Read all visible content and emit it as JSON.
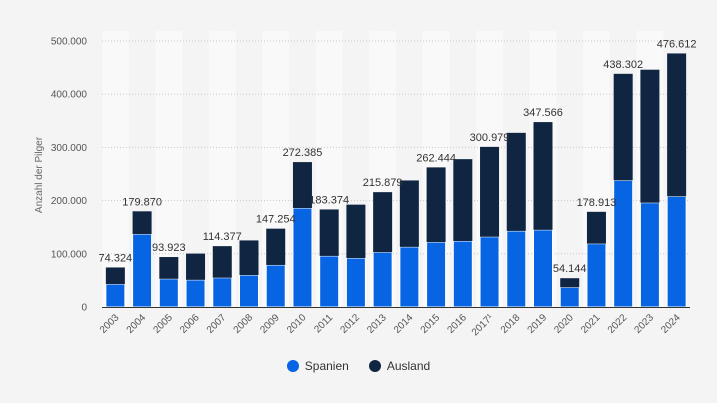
{
  "chart_data": {
    "type": "bar",
    "stacked": true,
    "title": "",
    "xlabel": "",
    "ylabel": "Anzahl der Pilger",
    "ylim": [
      0,
      500000
    ],
    "yticks": [
      0,
      100000,
      200000,
      300000,
      400000,
      500000
    ],
    "ytick_labels": [
      "0",
      "100.000",
      "200.000",
      "300.000",
      "400.000",
      "500.000"
    ],
    "grid": true,
    "legend_position": "bottom-center",
    "categories": [
      "2003",
      "2004",
      "2005",
      "2006",
      "2007",
      "2008",
      "2009",
      "2010",
      "2011",
      "2012",
      "2013",
      "2014",
      "2015",
      "2016",
      "2017¹",
      "2018",
      "2019",
      "2020",
      "2021",
      "2022",
      "2023",
      "2024"
    ],
    "series": [
      {
        "name": "Spanien",
        "color": "#0764e3",
        "values": [
          43000,
          137000,
          53000,
          51000,
          55000,
          60000,
          79000,
          186000,
          96000,
          92000,
          103000,
          113000,
          122000,
          124000,
          132000,
          143000,
          145000,
          37000,
          119000,
          238000,
          196000,
          208000
        ]
      },
      {
        "name": "Ausland",
        "color": "#0f2542",
        "values": [
          31324,
          42870,
          40923,
          49377,
          59377,
          65141,
          68254,
          86385,
          87374,
          100400,
          112879,
          124886,
          140444,
          153915,
          168979,
          184378,
          202566,
          17144,
          59913,
          200302,
          250035,
          268612
        ]
      }
    ],
    "totals": [
      74324,
      179870,
      93923,
      100377,
      114377,
      125141,
      147254,
      272385,
      183374,
      192400,
      215879,
      237886,
      262444,
      277915,
      300979,
      327378,
      347566,
      54144,
      178913,
      438302,
      446035,
      476612
    ],
    "data_labels": [
      "74.324",
      "179.870",
      "93.923",
      "",
      "114.377",
      "",
      "147.254",
      "272.385",
      "183.374",
      "",
      "215.879",
      "",
      "262.444",
      "",
      "300.979",
      "",
      "347.566",
      "54.144",
      "178.913",
      "438.302",
      "",
      "476.612"
    ]
  },
  "legend": {
    "items": [
      {
        "label": "Spanien",
        "color": "#0764e3"
      },
      {
        "label": "Ausland",
        "color": "#0f2542"
      }
    ]
  }
}
